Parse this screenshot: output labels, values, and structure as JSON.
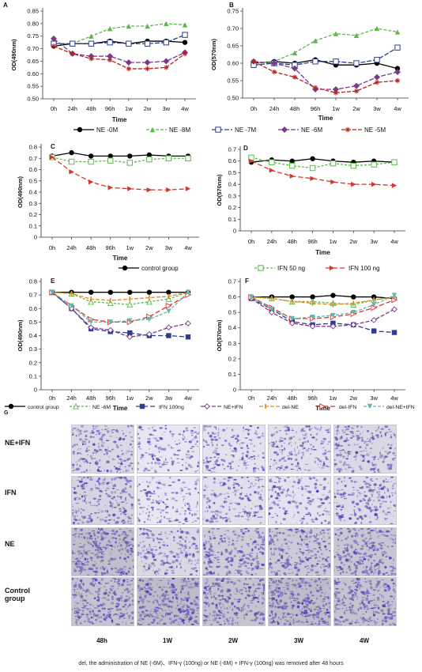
{
  "x_categories": [
    "0h",
    "24h",
    "48h",
    "96h",
    "1w",
    "2w",
    "3w",
    "4w"
  ],
  "time_label": "Time",
  "legend_ab": [
    {
      "name": "NE -0M",
      "color": "#000000",
      "marker": "circle",
      "dash": "none"
    },
    {
      "name": "NE -8M",
      "color": "#5cb84a",
      "marker": "triangle",
      "dash": "4,2"
    },
    {
      "name": "NE -7M",
      "color": "#2f3d8f",
      "marker": "square-open",
      "dash": "6,2"
    },
    {
      "name": "NE -6M",
      "color": "#7a3a8a",
      "marker": "diamond",
      "dash": "6,2"
    },
    {
      "name": "NE -5M",
      "color": "#b3261e",
      "marker": "star",
      "dash": "5,2"
    }
  ],
  "legend_cd": [
    {
      "name": "control group",
      "color": "#000000",
      "marker": "circle",
      "dash": "none"
    },
    {
      "name": "IFN 50 ng",
      "color": "#5cb84a",
      "marker": "square-open",
      "dash": "3,2"
    },
    {
      "name": "IFN 100 ng",
      "color": "#d9342b",
      "marker": "triangle-right",
      "dash": "6,3"
    }
  ],
  "legend_ef": [
    {
      "name": "control group",
      "color": "#000000",
      "marker": "circle",
      "dash": "none"
    },
    {
      "name": "NE -6M",
      "color": "#5cb84a",
      "marker": "triangle-open",
      "dash": "3,2"
    },
    {
      "name": "IFN 100ng",
      "color": "#2f3d8f",
      "marker": "square",
      "dash": "6,3"
    },
    {
      "name": "NE+IFN",
      "color": "#7a3a8a",
      "marker": "diamond-open",
      "dash": "5,2"
    },
    {
      "name": "del-NE",
      "color": "#e08a1e",
      "marker": "bar",
      "dash": "5,2"
    },
    {
      "name": "del-IFN",
      "color": "#d9342b",
      "marker": "triangle-right-open",
      "dash": "6,3"
    },
    {
      "name": "del-NE+IFN",
      "color": "#5fb8b0",
      "marker": "triangle-down",
      "dash": "4,2"
    }
  ],
  "chart_data": [
    {
      "panel": "A",
      "type": "line",
      "xlabel": "Time",
      "ylabel": "OD(490nm)",
      "categories": [
        "0h",
        "24h",
        "48h",
        "96h",
        "1w",
        "2w",
        "3w",
        "4w"
      ],
      "ylim": [
        0.5,
        0.85
      ],
      "yticks": [
        0.5,
        0.55,
        0.6,
        0.65,
        0.7,
        0.75,
        0.8,
        0.85
      ],
      "ytick_labels": [
        "0.50",
        "0.55",
        "0.60",
        "0.65",
        "0.70",
        "0.75",
        "0.80",
        "0.85"
      ],
      "series": [
        {
          "name": "NE -0M",
          "values": [
            0.71,
            0.72,
            0.72,
            0.73,
            0.72,
            0.73,
            0.73,
            0.725
          ]
        },
        {
          "name": "NE -8M",
          "values": [
            0.72,
            0.72,
            0.75,
            0.78,
            0.79,
            0.79,
            0.8,
            0.795
          ]
        },
        {
          "name": "NE -7M",
          "values": [
            0.72,
            0.72,
            0.72,
            0.725,
            0.72,
            0.72,
            0.725,
            0.755
          ]
        },
        {
          "name": "NE -6M",
          "values": [
            0.74,
            0.68,
            0.67,
            0.67,
            0.645,
            0.645,
            0.65,
            0.685
          ]
        },
        {
          "name": "NE -5M",
          "values": [
            0.71,
            0.68,
            0.66,
            0.655,
            0.62,
            0.62,
            0.625,
            0.68
          ]
        }
      ]
    },
    {
      "panel": "B",
      "type": "line",
      "xlabel": "Time",
      "ylabel": "OD(570nm)",
      "categories": [
        "0h",
        "24h",
        "48h",
        "96h",
        "1w",
        "2w",
        "3w",
        "4w"
      ],
      "ylim": [
        0.5,
        0.75
      ],
      "yticks": [
        0.5,
        0.55,
        0.6,
        0.65,
        0.7,
        0.75
      ],
      "ytick_labels": [
        "0.50",
        "0.55",
        "0.60",
        "0.65",
        "0.70",
        "0.75"
      ],
      "series": [
        {
          "name": "NE -0M",
          "values": [
            0.6,
            0.605,
            0.6,
            0.61,
            0.595,
            0.595,
            0.6,
            0.585
          ]
        },
        {
          "name": "NE -8M",
          "values": [
            0.6,
            0.605,
            0.63,
            0.665,
            0.685,
            0.68,
            0.7,
            0.69
          ]
        },
        {
          "name": "NE -7M",
          "values": [
            0.595,
            0.6,
            0.595,
            0.605,
            0.605,
            0.6,
            0.61,
            0.645
          ]
        },
        {
          "name": "NE -6M",
          "values": [
            0.605,
            0.6,
            0.585,
            0.525,
            0.525,
            0.535,
            0.56,
            0.575
          ]
        },
        {
          "name": "NE -5M",
          "values": [
            0.605,
            0.575,
            0.56,
            0.53,
            0.515,
            0.52,
            0.545,
            0.55
          ]
        }
      ]
    },
    {
      "panel": "C",
      "type": "line",
      "xlabel": "Time",
      "ylabel": "OD(490nm)",
      "categories": [
        "0h",
        "24h",
        "48h",
        "96h",
        "1w",
        "2w",
        "3w",
        "4w"
      ],
      "ylim": [
        0,
        0.8
      ],
      "yticks": [
        0,
        0.1,
        0.2,
        0.3,
        0.4,
        0.5,
        0.6,
        0.7,
        0.8
      ],
      "ytick_labels": [
        "0",
        "0.1",
        "0.2",
        "0.3",
        "0.4",
        "0.5",
        "0.6",
        "0.7",
        "0.8"
      ],
      "series": [
        {
          "name": "control group",
          "values": [
            0.72,
            0.75,
            0.72,
            0.72,
            0.72,
            0.73,
            0.72,
            0.72
          ]
        },
        {
          "name": "IFN 50 ng",
          "values": [
            0.71,
            0.67,
            0.67,
            0.68,
            0.66,
            0.69,
            0.7,
            0.7
          ]
        },
        {
          "name": "IFN 100 ng",
          "values": [
            0.71,
            0.58,
            0.49,
            0.44,
            0.43,
            0.42,
            0.42,
            0.43
          ]
        }
      ]
    },
    {
      "panel": "D",
      "type": "line",
      "xlabel": "Time",
      "ylabel": "OD(570nm)",
      "categories": [
        "0h",
        "24h",
        "48h",
        "96h",
        "1w",
        "2w",
        "3w",
        "4w"
      ],
      "ylim": [
        0,
        0.7
      ],
      "yticks": [
        0,
        0.1,
        0.2,
        0.3,
        0.4,
        0.5,
        0.6,
        0.7
      ],
      "ytick_labels": [
        "0",
        "0.1",
        "0.2",
        "0.3",
        "0.4",
        "0.5",
        "0.6",
        "0.7"
      ],
      "series": [
        {
          "name": "control group",
          "values": [
            0.59,
            0.61,
            0.6,
            0.62,
            0.6,
            0.59,
            0.6,
            0.59
          ]
        },
        {
          "name": "IFN 50 ng",
          "values": [
            0.63,
            0.59,
            0.56,
            0.54,
            0.58,
            0.56,
            0.57,
            0.59
          ]
        },
        {
          "name": "IFN 100 ng",
          "values": [
            0.6,
            0.52,
            0.47,
            0.45,
            0.42,
            0.4,
            0.4,
            0.39
          ]
        }
      ]
    },
    {
      "panel": "E",
      "type": "line",
      "xlabel": "Time",
      "ylabel": "OD(490nm)",
      "categories": [
        "0h",
        "24h",
        "48h",
        "96h",
        "1w",
        "2w",
        "3w",
        "4w"
      ],
      "ylim": [
        0,
        0.8
      ],
      "yticks": [
        0,
        0.1,
        0.2,
        0.3,
        0.4,
        0.5,
        0.6,
        0.7,
        0.8
      ],
      "ytick_labels": [
        "0",
        "0.1",
        "0.2",
        "0.3",
        "0.4",
        "0.5",
        "0.6",
        "0.7",
        "0.8"
      ],
      "series": [
        {
          "name": "control group",
          "values": [
            0.72,
            0.72,
            0.72,
            0.72,
            0.72,
            0.72,
            0.72,
            0.72
          ]
        },
        {
          "name": "NE -6M",
          "values": [
            0.72,
            0.71,
            0.65,
            0.64,
            0.63,
            0.65,
            0.67,
            0.72
          ]
        },
        {
          "name": "IFN 100ng",
          "values": [
            0.72,
            0.6,
            0.45,
            0.43,
            0.42,
            0.4,
            0.4,
            0.39
          ]
        },
        {
          "name": "NE+IFN",
          "values": [
            0.72,
            0.6,
            0.46,
            0.44,
            0.39,
            0.41,
            0.46,
            0.49
          ]
        },
        {
          "name": "del-NE",
          "values": [
            0.72,
            0.71,
            0.67,
            0.66,
            0.67,
            0.68,
            0.69,
            0.72
          ]
        },
        {
          "name": "del-IFN",
          "values": [
            0.72,
            0.62,
            0.52,
            0.5,
            0.5,
            0.54,
            0.62,
            0.7
          ]
        },
        {
          "name": "del-NE+IFN",
          "values": [
            0.72,
            0.62,
            0.5,
            0.5,
            0.51,
            0.52,
            0.58,
            0.72
          ]
        }
      ]
    },
    {
      "panel": "F",
      "type": "line",
      "xlabel": "Time",
      "ylabel": "OD(570nm)",
      "categories": [
        "0h",
        "24h",
        "48h",
        "96h",
        "1w",
        "2w",
        "3w",
        "4w"
      ],
      "ylim": [
        0,
        0.7
      ],
      "yticks": [
        0,
        0.1,
        0.2,
        0.3,
        0.4,
        0.5,
        0.6,
        0.7
      ],
      "ytick_labels": [
        "0",
        "0.1",
        "0.2",
        "0.3",
        "0.4",
        "0.5",
        "0.6",
        "0.7"
      ],
      "series": [
        {
          "name": "control group",
          "values": [
            0.6,
            0.6,
            0.6,
            0.6,
            0.61,
            0.6,
            0.6,
            0.59
          ]
        },
        {
          "name": "NE -6M",
          "values": [
            0.6,
            0.59,
            0.57,
            0.57,
            0.56,
            0.55,
            0.58,
            0.6
          ]
        },
        {
          "name": "IFN 100ng",
          "values": [
            0.59,
            0.52,
            0.44,
            0.42,
            0.43,
            0.42,
            0.38,
            0.37
          ]
        },
        {
          "name": "NE+IFN",
          "values": [
            0.59,
            0.5,
            0.43,
            0.41,
            0.41,
            0.42,
            0.45,
            0.52
          ]
        },
        {
          "name": "del-NE",
          "values": [
            0.6,
            0.59,
            0.57,
            0.56,
            0.55,
            0.56,
            0.58,
            0.6
          ]
        },
        {
          "name": "del-IFN",
          "values": [
            0.6,
            0.53,
            0.46,
            0.46,
            0.47,
            0.49,
            0.53,
            0.58
          ]
        },
        {
          "name": "del-NE+IFN",
          "values": [
            0.6,
            0.52,
            0.46,
            0.47,
            0.48,
            0.5,
            0.55,
            0.61
          ]
        }
      ]
    }
  ],
  "micrographs": {
    "panel_label": "G",
    "row_labels": [
      [
        "NE+IFN"
      ],
      [
        "IFN"
      ],
      [
        "NE"
      ],
      [
        "Control",
        "group"
      ]
    ],
    "col_labels": [
      "48h",
      "1W",
      "2W",
      "3W",
      "4W"
    ],
    "densities": [
      [
        0.55,
        0.35,
        0.4,
        0.45,
        0.55
      ],
      [
        0.6,
        0.35,
        0.45,
        0.4,
        0.5
      ],
      [
        0.9,
        0.55,
        0.7,
        0.75,
        0.8
      ],
      [
        0.85,
        0.95,
        0.85,
        0.95,
        0.85
      ]
    ]
  },
  "footnote": "del, the administration of NE (-6M)、IFN-γ (100ng) or NE (-6M) + IFN-γ (100ng)  was removed after 48 hours"
}
